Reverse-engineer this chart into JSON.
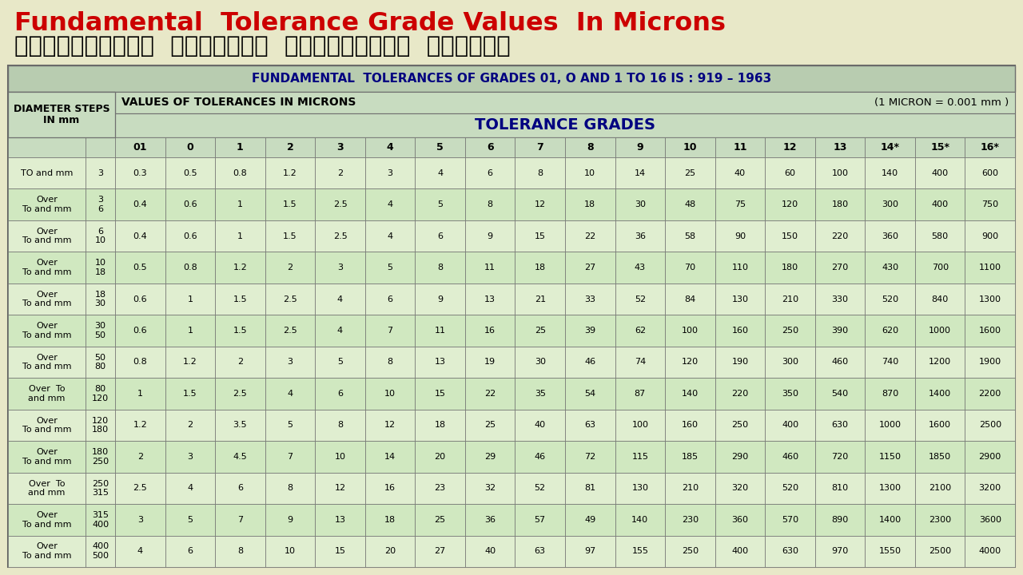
{
  "title_en": "Fundamental  Tolerance Grade Values  In Microns",
  "title_mr": "फ़ंडामेंटल  टॉलरन्स  ग्रेडच्या  किंमती",
  "table_title": "FUNDAMENTAL  TOLERANCES OF GRADES 01, O AND 1 TO 16 IS : 919 – 1963",
  "col_header1": "VALUES OF TOLERANCES IN MICRONS",
  "col_header2": "(1 MICRON = 0.001 mm )",
  "col_header3": "TOLERANCE GRADES",
  "row_header_top": "DIAMETER STEPS\nIN mm",
  "grades": [
    "01",
    "0",
    "1",
    "2",
    "3",
    "4",
    "5",
    "6",
    "7",
    "8",
    "9",
    "10",
    "11",
    "12",
    "13",
    "14*",
    "15*",
    "16*"
  ],
  "diameter_steps": [
    [
      "TO and mm",
      "3"
    ],
    [
      "Over\nTo and mm",
      "3\n6"
    ],
    [
      "Over\nTo and mm",
      "6\n10"
    ],
    [
      "Over\nTo and mm",
      "10\n18"
    ],
    [
      "Over\nTo and mm",
      "18\n30"
    ],
    [
      "Over\nTo and mm",
      "30\n50"
    ],
    [
      "Over\nTo and mm",
      "50\n80"
    ],
    [
      "Over  To\nand mm",
      "80\n120"
    ],
    [
      "Over\nTo and mm",
      "120\n180"
    ],
    [
      "Over\nTo and mm",
      "180\n250"
    ],
    [
      "Over  To\nand mm",
      "250\n315"
    ],
    [
      "Over\nTo and mm",
      "315\n400"
    ],
    [
      "Over\nTo and mm",
      "400\n500"
    ]
  ],
  "values": [
    [
      0.3,
      0.5,
      0.8,
      1.2,
      2,
      3,
      4,
      6,
      8,
      10,
      14,
      25,
      40,
      60,
      100,
      140,
      400,
      600
    ],
    [
      0.4,
      0.6,
      1,
      1.5,
      2.5,
      4,
      5,
      8,
      12,
      18,
      30,
      48,
      75,
      120,
      180,
      300,
      400,
      750
    ],
    [
      0.4,
      0.6,
      1,
      1.5,
      2.5,
      4,
      6,
      9,
      15,
      22,
      36,
      58,
      90,
      150,
      220,
      360,
      580,
      900
    ],
    [
      0.5,
      0.8,
      1.2,
      2,
      3,
      5,
      8,
      11,
      18,
      27,
      43,
      70,
      110,
      180,
      270,
      430,
      700,
      1100
    ],
    [
      0.6,
      1,
      1.5,
      2.5,
      4,
      6,
      9,
      13,
      21,
      33,
      52,
      84,
      130,
      210,
      330,
      520,
      840,
      1300
    ],
    [
      0.6,
      1,
      1.5,
      2.5,
      4,
      7,
      11,
      16,
      25,
      39,
      62,
      100,
      160,
      250,
      390,
      620,
      1000,
      1600
    ],
    [
      0.8,
      1.2,
      2,
      3,
      5,
      8,
      13,
      19,
      30,
      46,
      74,
      120,
      190,
      300,
      460,
      740,
      1200,
      1900
    ],
    [
      1,
      1.5,
      2.5,
      4,
      6,
      10,
      15,
      22,
      35,
      54,
      87,
      140,
      220,
      350,
      540,
      870,
      1400,
      2200
    ],
    [
      1.2,
      2,
      3.5,
      5,
      8,
      12,
      18,
      25,
      40,
      63,
      100,
      160,
      250,
      400,
      630,
      1000,
      1600,
      2500
    ],
    [
      2,
      3,
      4.5,
      7,
      10,
      14,
      20,
      29,
      46,
      72,
      115,
      185,
      290,
      460,
      720,
      1150,
      1850,
      2900
    ],
    [
      2.5,
      4,
      6,
      8,
      12,
      16,
      23,
      32,
      52,
      81,
      130,
      210,
      320,
      520,
      810,
      1300,
      2100,
      3200
    ],
    [
      3,
      5,
      7,
      9,
      13,
      18,
      25,
      36,
      57,
      49,
      140,
      230,
      360,
      570,
      890,
      1400,
      2300,
      3600
    ],
    [
      4,
      6,
      8,
      10,
      15,
      20,
      27,
      40,
      63,
      97,
      155,
      250,
      400,
      630,
      970,
      1550,
      2500,
      4000
    ]
  ],
  "outer_bg": "#e8e8c8",
  "table_outer_bg": "#d8ecd8",
  "header_title_bg": "#b8ccb0",
  "header_row_bg": "#c8dcc0",
  "data_row_odd": "#e0eed0",
  "data_row_even": "#d0e8c0",
  "border_color": "#909090",
  "title_en_color": "#cc0000",
  "title_mr_color": "#000000",
  "table_title_color": "#000080",
  "grade_header_color": "#000000",
  "value_color": "#000000"
}
